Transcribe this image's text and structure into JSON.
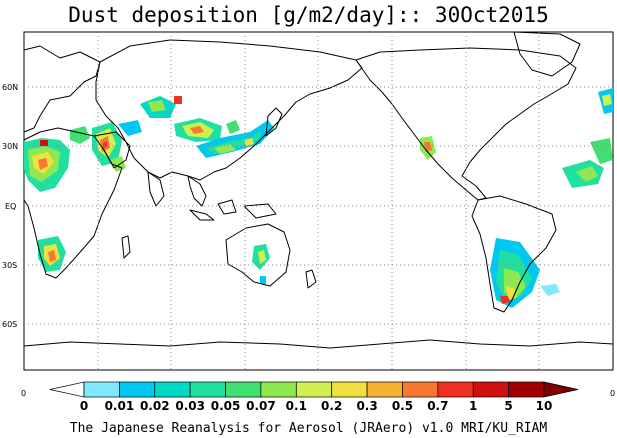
{
  "title": "Dust deposition [g/m2/day]:: 30Oct2015",
  "footer": "The Japanese Reanalysis for Aerosol (JRAero) v1.0 MRI/KU_RIAM",
  "lat_labels": [
    "60N",
    "30N",
    "EQ",
    "30S",
    "60S"
  ],
  "axis_end_labels": {
    "left": "0",
    "right": "0"
  },
  "colorbar": {
    "labels": [
      "0",
      "0.01",
      "0.02",
      "0.03",
      "0.05",
      "0.07",
      "0.1",
      "0.2",
      "0.3",
      "0.5",
      "0.7",
      "1",
      "5",
      "10"
    ],
    "colors": [
      "#ffffff",
      "#80e8ff",
      "#00c8f0",
      "#00d8c8",
      "#20e0a0",
      "#40e070",
      "#90e850",
      "#d0f050",
      "#f0e040",
      "#f8b030",
      "#f87830",
      "#f03020",
      "#d01010",
      "#a00000",
      "#800000"
    ]
  },
  "map": {
    "projection": "plate carree, centered at 150E",
    "grid": "dotted, 30 degree spacing",
    "land_color": "#ffffff",
    "coastline_color": "#000000"
  }
}
